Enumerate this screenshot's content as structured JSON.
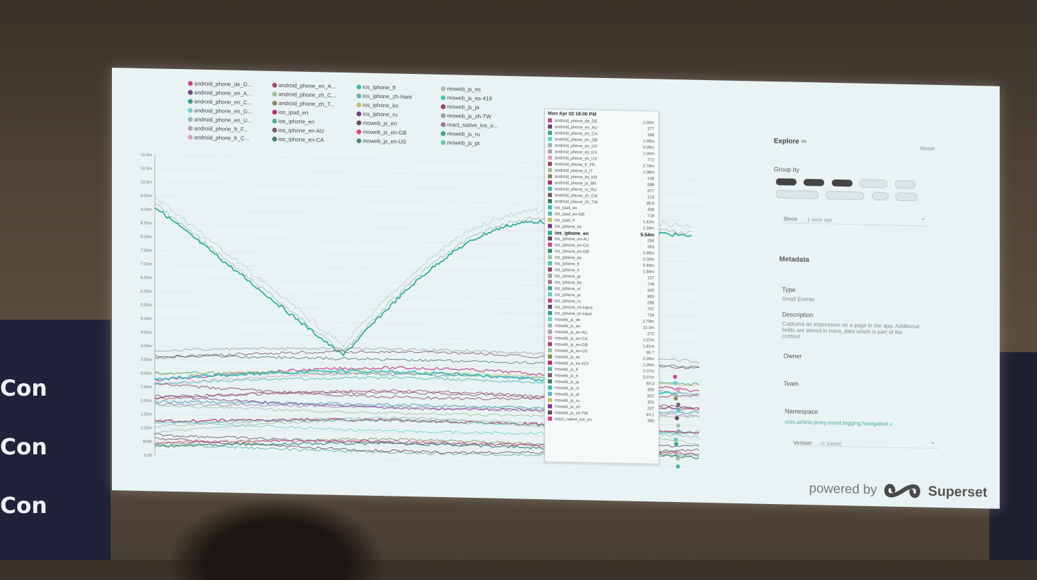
{
  "banner": {
    "lines": [
      "Con",
      "Con",
      "Con"
    ]
  },
  "chart": {
    "y_ticks": [
      "11.0m",
      "10.5m",
      "10.0m",
      "9.50m",
      "9.00m",
      "8.50m",
      "8.00m",
      "7.50m",
      "7.00m",
      "6.50m",
      "6.00m",
      "5.50m",
      "5.00m",
      "4.50m",
      "4.00m",
      "3.50m",
      "3.00m",
      "2.50m",
      "2.00m",
      "1.50m",
      "1.00m",
      "500k",
      "0.00"
    ],
    "legend": [
      {
        "label": "android_phone_de_D...",
        "color": "#c04a8a"
      },
      {
        "label": "android_phone_en_A...",
        "color": "#6a4a7a"
      },
      {
        "label": "android_phone_en_C...",
        "color": "#3aa08a"
      },
      {
        "label": "android_phone_en_G...",
        "color": "#6ad0c8"
      },
      {
        "label": "android_phone_en_U...",
        "color": "#9ab8b0"
      },
      {
        "label": "android_phone_fr_F...",
        "color": "#b0a0c0"
      },
      {
        "label": "android_phone_fr_C...",
        "color": "#d8a0c0"
      },
      {
        "label": "android_phone_en_A...",
        "color": "#a04a6a"
      },
      {
        "label": "android_phone_zh_C...",
        "color": "#a0c0a0"
      },
      {
        "label": "android_phone_zh_T...",
        "color": "#8a8a5a"
      },
      {
        "label": "ios_ipad_en",
        "color": "#b03070"
      },
      {
        "label": "ios_iphone_en",
        "color": "#5ab0a0"
      },
      {
        "label": "ios_iphone_en-AU",
        "color": "#7a5a6a"
      },
      {
        "label": "ios_iphone_en-CA",
        "color": "#4a7a6a"
      },
      {
        "label": "ios_iphone_fr",
        "color": "#4ab8b0"
      },
      {
        "label": "ios_iphone_zh-Hant",
        "color": "#6ab0b8"
      },
      {
        "label": "ios_iphone_ko",
        "color": "#c0c06a"
      },
      {
        "label": "ios_iphone_ru",
        "color": "#7a3a8a"
      },
      {
        "label": "moweb_js_en",
        "color": "#6a4a5a"
      },
      {
        "label": "moweb_js_en-GB",
        "color": "#d04a80"
      },
      {
        "label": "moweb_js_en-US",
        "color": "#4a8a7a"
      },
      {
        "label": "moweb_js_es",
        "color": "#a8c0a8"
      },
      {
        "label": "moweb_js_es-419",
        "color": "#5ac0b0"
      },
      {
        "label": "moweb_js_ja",
        "color": "#8a4a6a"
      },
      {
        "label": "moweb_js_zh-TW",
        "color": "#a0a0a0"
      },
      {
        "label": "react_native_ios_e...",
        "color": "#a07a8a"
      },
      {
        "label": "moweb_js_ru",
        "color": "#4aa090"
      },
      {
        "label": "moweb_js_pt",
        "color": "#6ac8c0"
      }
    ],
    "tooltip": {
      "header": "Mon Apr 02 18:00 PM",
      "rows": [
        {
          "label": "android_phone_de_DE",
          "value": "1.00m",
          "color": "#c04a8a"
        },
        {
          "label": "android_phone_en_AU",
          "value": "177",
          "color": "#6a4a7a"
        },
        {
          "label": "android_phone_en_CA",
          "value": "388",
          "color": "#3aa08a"
        },
        {
          "label": "android_phone_en_GB",
          "value": "1.05m",
          "color": "#6ad0c8"
        },
        {
          "label": "android_phone_en_US",
          "value": "3.05m",
          "color": "#9ab8b0"
        },
        {
          "label": "android_phone_es_ES",
          "value": "1.00m",
          "color": "#b0a0c0"
        },
        {
          "label": "android_phone_es_US",
          "value": "772",
          "color": "#d8a0c0"
        },
        {
          "label": "android_phone_fr_FR",
          "value": "2.79m",
          "color": "#a04a6a"
        },
        {
          "label": "android_phone_it_IT",
          "value": "1.08m",
          "color": "#a0c0a0"
        },
        {
          "label": "android_phone_ko_KR",
          "value": "198",
          "color": "#8a8a5a"
        },
        {
          "label": "android_phone_pt_BR",
          "value": "588",
          "color": "#b03070"
        },
        {
          "label": "android_phone_ru_RU",
          "value": "377",
          "color": "#5ab0a0"
        },
        {
          "label": "android_phone_zh_CN",
          "value": "213",
          "color": "#7a5a6a"
        },
        {
          "label": "android_phone_zh_TW",
          "value": "38.8",
          "color": "#4a7a6a"
        },
        {
          "label": "ios_ipad_en",
          "value": "408",
          "color": "#4ab8b0"
        },
        {
          "label": "ios_ipad_en-GB",
          "value": "718",
          "color": "#6ab0b8"
        },
        {
          "label": "ios_ipad_fr",
          "value": "1.42m",
          "color": "#c0c06a"
        },
        {
          "label": "ios_iphone_ko",
          "value": "1.28m",
          "color": "#7a3a8a"
        },
        {
          "label": "ios_iphone_en",
          "value": "5.54m",
          "color": "#2aa898",
          "bold": true
        },
        {
          "label": "ios_iphone_en-AU",
          "value": "284",
          "color": "#6a4a5a"
        },
        {
          "label": "ios_iphone_en-CA",
          "value": "363",
          "color": "#d04a80"
        },
        {
          "label": "ios_iphone_en-GB",
          "value": "2.95m",
          "color": "#4a8a7a"
        },
        {
          "label": "ios_iphone_es",
          "value": "2.00m",
          "color": "#a8c0a8"
        },
        {
          "label": "ios_iphone_fr",
          "value": "3.48m",
          "color": "#5ac0b0"
        },
        {
          "label": "ios_iphone_it",
          "value": "1.59m",
          "color": "#8a4a6a"
        },
        {
          "label": "ios_iphone_ja",
          "value": "137",
          "color": "#a0a0a0"
        },
        {
          "label": "ios_iphone_ko",
          "value": "748",
          "color": "#a07a8a"
        },
        {
          "label": "ios_iphone_nl",
          "value": "345",
          "color": "#4aa090"
        },
        {
          "label": "ios_iphone_pt",
          "value": "883",
          "color": "#6ac8c0"
        },
        {
          "label": "ios_iphone_ru",
          "value": "285",
          "color": "#c04a8a"
        },
        {
          "label": "ios_iphone_zh-Hans",
          "value": "707",
          "color": "#6a4a7a"
        },
        {
          "label": "ios_iphone_zh-Hant",
          "value": "734",
          "color": "#3aa08a"
        },
        {
          "label": "moweb_js_de",
          "value": "2.79m",
          "color": "#6ad0c8"
        },
        {
          "label": "moweb_js_en",
          "value": "11.3m",
          "color": "#9ab8b0"
        },
        {
          "label": "moweb_js_en-AU",
          "value": "272",
          "color": "#b0a0c0"
        },
        {
          "label": "moweb_js_en-CA",
          "value": "1.07m",
          "color": "#d8a0c0"
        },
        {
          "label": "moweb_js_en-GB",
          "value": "1.81m",
          "color": "#a04a6a"
        },
        {
          "label": "moweb_js_en-US",
          "value": "90.7",
          "color": "#a0c0a0"
        },
        {
          "label": "moweb_js_es",
          "value": "2.36m",
          "color": "#8a8a5a"
        },
        {
          "label": "moweb_js_es-419",
          "value": "1.06m",
          "color": "#b03070"
        },
        {
          "label": "moweb_js_fr",
          "value": "2.07m",
          "color": "#5ab0a0"
        },
        {
          "label": "moweb_js_it",
          "value": "2.07m",
          "color": "#7a5a6a"
        },
        {
          "label": "moweb_js_ja",
          "value": "89.3",
          "color": "#4a7a6a"
        },
        {
          "label": "moweb_js_nl",
          "value": "390",
          "color": "#4ab8b0"
        },
        {
          "label": "moweb_js_pt",
          "value": "502",
          "color": "#6ab0b8"
        },
        {
          "label": "moweb_js_ru",
          "value": "301",
          "color": "#c0c06a"
        },
        {
          "label": "moweb_js_zh",
          "value": "207",
          "color": "#7a3a8a"
        },
        {
          "label": "moweb_js_zh-TW",
          "value": "40.1",
          "color": "#6a4a5a"
        },
        {
          "label": "react_native_ios_en",
          "value": "380",
          "color": "#d04a80"
        }
      ]
    }
  },
  "side": {
    "explore": "Explore",
    "reset": "Reset",
    "group_by": "Group by",
    "since": "Since",
    "since_value": "1 week ago",
    "metadata": "Metadata",
    "type": "Type",
    "type_value": "Small Events",
    "description": "Description",
    "description_value": "Captures an impression on a page in the app. Additional fields are stored in extra_data which is part of the context.",
    "owner": "Owner",
    "team": "Team",
    "namespace": "Namespace",
    "namespace_value": "com.airbnb.jitney.event.logging.Navigation.v",
    "version": "Version",
    "version_value": "v1 (latest)"
  },
  "powered": {
    "by": "powered by",
    "brand": "Superset"
  }
}
